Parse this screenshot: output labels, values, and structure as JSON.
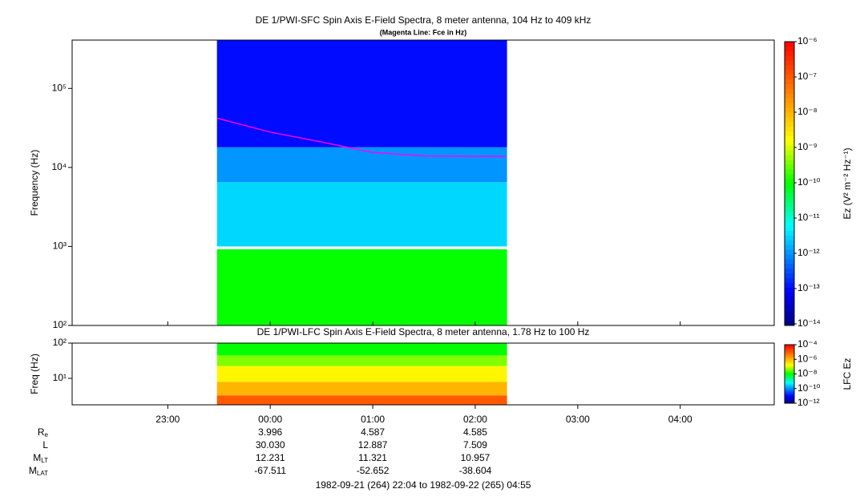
{
  "chart_data": [
    {
      "type": "spectrogram",
      "title": "DE 1/PWI-SFC  Spin Axis E-Field Spectra, 8 meter antenna, 104 Hz to 409 kHz",
      "subtitle": "(Magenta Line: Fce in Hz)",
      "ylabel": "Frequency (Hz)",
      "ylog": true,
      "ylim": [
        100,
        409000
      ],
      "yticks": [
        {
          "value": 100,
          "label": "10²"
        },
        {
          "value": 1000,
          "label": "10³"
        },
        {
          "value": 10000,
          "label": "10⁴"
        },
        {
          "value": 100000,
          "label": "10⁵"
        }
      ],
      "data_xlim": [
        -0.52,
        2.31
      ],
      "band_edges": [
        100,
        920,
        1000,
        6500,
        18000,
        409000
      ],
      "band_values": [
        1e-10,
        null,
        3e-12,
        1e-12,
        1e-13
      ],
      "fce": {
        "color": "#ff00ff",
        "x": [
          -0.52,
          0,
          0.5,
          1,
          1.5,
          2.3
        ],
        "values": [
          42000,
          28000,
          21000,
          15500,
          14000,
          13800
        ]
      },
      "colorbar": {
        "label": "Ez (V² m⁻² Hz⁻¹)",
        "zlim": [
          9e-15,
          1e-06
        ],
        "zticks": [
          {
            "value": 1e-06,
            "label": "10⁻⁶"
          },
          {
            "value": 1e-07,
            "label": "10⁻⁷"
          },
          {
            "value": 1e-08,
            "label": "10⁻⁸"
          },
          {
            "value": 1e-09,
            "label": "10⁻⁹"
          },
          {
            "value": 1e-10,
            "label": "10⁻¹⁰"
          },
          {
            "value": 1e-11,
            "label": "10⁻¹¹"
          },
          {
            "value": 1e-12,
            "label": "10⁻¹²"
          },
          {
            "value": 1e-13,
            "label": "10⁻¹³"
          },
          {
            "value": 1e-14,
            "label": "10⁻¹⁴"
          }
        ]
      }
    },
    {
      "type": "spectrogram",
      "title": "DE 1/PWI-LFC  Spin Axis E-Field Spectra, 8 meter antenna, 1.78 Hz to 100 Hz",
      "ylabel": "Freq (Hz)",
      "ylog": true,
      "ylim": [
        1.78,
        100
      ],
      "yticks": [
        {
          "value": 10,
          "label": "10¹"
        },
        {
          "value": 100,
          "label": "10²"
        }
      ],
      "data_xlim": [
        -0.52,
        2.31
      ],
      "band_edges": [
        1.78,
        3.3,
        7.9,
        22.4,
        44.7,
        100
      ],
      "band_values": [
        1e-05,
        1e-06,
        2e-07,
        4e-08,
        1e-08
      ],
      "colorbar": {
        "label": "LFC Ez",
        "zlim": [
          1e-12,
          0.0001
        ],
        "zticks": [
          {
            "value": 0.0001,
            "label": "10⁻⁴"
          },
          {
            "value": 1e-06,
            "label": "10⁻⁶"
          },
          {
            "value": 1e-08,
            "label": "10⁻⁸"
          },
          {
            "value": 1e-10,
            "label": "10⁻¹⁰"
          },
          {
            "value": 1e-12,
            "label": "10⁻¹²"
          }
        ]
      }
    }
  ],
  "time_axis": {
    "xlim": [
      -1.933,
      4.917
    ],
    "xticks": [
      {
        "value": -1,
        "label": "23:00"
      },
      {
        "value": 0,
        "label": "00:00"
      },
      {
        "value": 1,
        "label": "01:00"
      },
      {
        "value": 2,
        "label": "02:00"
      },
      {
        "value": 3,
        "label": "03:00"
      },
      {
        "value": 4,
        "label": "04:00"
      }
    ]
  },
  "ephemeris": {
    "rows": [
      {
        "label": "R",
        "sub": "e",
        "values": [
          "3.996",
          "4.587",
          "4.585"
        ]
      },
      {
        "label": "L",
        "values": [
          "30.030",
          "12.887",
          "7.509"
        ]
      },
      {
        "label": "M",
        "sub": "LT",
        "values": [
          "12.231",
          "11.321",
          "10.957"
        ]
      },
      {
        "label": "M",
        "sub": "LAT",
        "values": [
          "-67.511",
          "-52.652",
          "-38.604"
        ]
      }
    ]
  },
  "time_range": "1982-09-21 (264) 22:04 to 1982-09-22 (265) 04:55"
}
